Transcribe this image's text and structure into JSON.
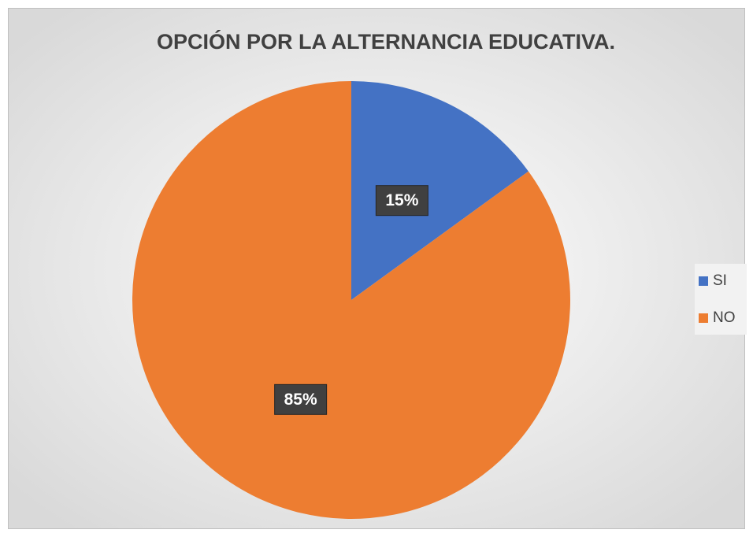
{
  "chart_data": {
    "type": "pie",
    "title": "OPCIÓN POR LA ALTERNANCIA EDUCATIVA.",
    "categories": [
      "SI",
      "NO"
    ],
    "values": [
      15,
      85
    ],
    "value_labels": [
      "15%",
      "85%"
    ],
    "colors": [
      "#4472c4",
      "#ed7d31"
    ],
    "legend": "right"
  }
}
